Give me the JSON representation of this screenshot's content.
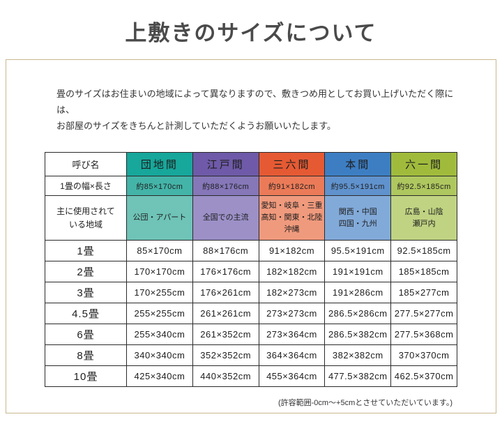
{
  "title": "上敷きのサイズについて",
  "intro": {
    "line1": "畳のサイズはお住まいの地域によって異なりますので、敷きつめ用としてお買い上げいただく際には、",
    "line2": "お部屋のサイズをきちんと計測していただくようお願いいたします。"
  },
  "table": {
    "corner_label": "呼び名",
    "size_label": "1畳の幅×長さ",
    "region_label": "主に使用されて\nいる地域",
    "columns": [
      {
        "name": "団地間",
        "colors": {
          "header": "#17a79b",
          "size": "#44b4a8",
          "region": "#6fc3b7"
        },
        "size": "約85×170cm",
        "region": "公団・アパート",
        "values": [
          "85×170cm",
          "170×170cm",
          "170×255cm",
          "255×255cm",
          "255×340cm",
          "340×340cm",
          "425×340cm"
        ]
      },
      {
        "name": "江戸間",
        "colors": {
          "header": "#6e5aa8",
          "size": "#8577b8",
          "region": "#9c90c7"
        },
        "size": "約88×176cm",
        "region": "全国での主流",
        "values": [
          "88×176cm",
          "176×176cm",
          "176×261cm",
          "261×261cm",
          "261×352cm",
          "352×352cm",
          "440×352cm"
        ]
      },
      {
        "name": "三六間",
        "colors": {
          "header": "#e55a33",
          "size": "#eb7b58",
          "region": "#f09a7d"
        },
        "size": "約91×182cm",
        "region": "愛知・岐阜・三重\n高知・関東・北陸\n沖縄",
        "values": [
          "91×182cm",
          "182×182cm",
          "182×273cm",
          "273×273cm",
          "273×364cm",
          "364×364cm",
          "455×364cm"
        ]
      },
      {
        "name": "本間",
        "colors": {
          "header": "#3d7ec3",
          "size": "#6092cd",
          "region": "#82aad9"
        },
        "size": "約95.5×191cm",
        "region": "関西・中国\n四国・九州",
        "values": [
          "95.5×191cm",
          "191×191cm",
          "191×286cm",
          "286.5×286cm",
          "286.5×382cm",
          "382×382cm",
          "477.5×382cm"
        ]
      },
      {
        "name": "六一間",
        "colors": {
          "header": "#a0bb3c",
          "size": "#afc75f",
          "region": "#c0d382"
        },
        "size": "約92.5×185cm",
        "region": "広島・山陰\n瀬戸内",
        "values": [
          "92.5×185cm",
          "185×185cm",
          "185×277cm",
          "277.5×277cm",
          "277.5×368cm",
          "370×370cm",
          "462.5×370cm"
        ]
      }
    ],
    "mat_rows": [
      {
        "label": "1畳"
      },
      {
        "label": "2畳"
      },
      {
        "label": "3畳"
      },
      {
        "label": "4.5畳"
      },
      {
        "label": "6畳"
      },
      {
        "label": "8畳"
      },
      {
        "label": "10畳"
      }
    ],
    "note": "(許容範囲-0cm〜+5cmとさせていただいています。)"
  }
}
